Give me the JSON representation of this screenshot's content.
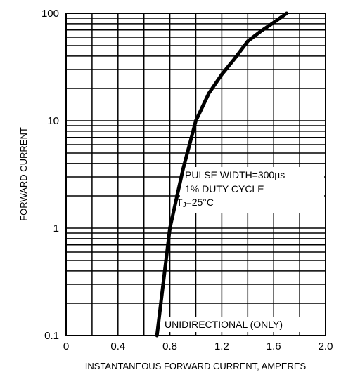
{
  "chart_data": {
    "type": "line",
    "title": "",
    "xlabel": "INSTANTANEOUS FORWARD CURRENT, AMPERES",
    "ylabel": "FORWARD CURRENT",
    "xlim": [
      0,
      2.0
    ],
    "ylim": [
      0.1,
      100
    ],
    "yscale": "log",
    "grid": true,
    "x_ticks": [
      "0",
      "0.4",
      "0.8",
      "1.2",
      "1.6",
      "2.0"
    ],
    "y_ticks": [
      "0.1",
      "1",
      "10",
      "100"
    ],
    "series": [
      {
        "x": [
          0.7,
          0.8,
          0.9,
          1.0,
          1.1,
          1.2,
          1.3,
          1.4,
          1.5,
          1.6,
          1.7
        ],
        "y": [
          0.1,
          1.0,
          3.5,
          10,
          18,
          27,
          38,
          55,
          68,
          82,
          100
        ]
      }
    ],
    "annotations": {
      "pulse_width": "PULSE WIDTH=300µs",
      "duty_cycle": "1% DUTY CYCLE",
      "tj_prefix": "T",
      "tj_sub": "J",
      "tj_suffix": "=25°C",
      "unidirectional": "UNIDIRECTIONAL (ONLY)"
    }
  }
}
